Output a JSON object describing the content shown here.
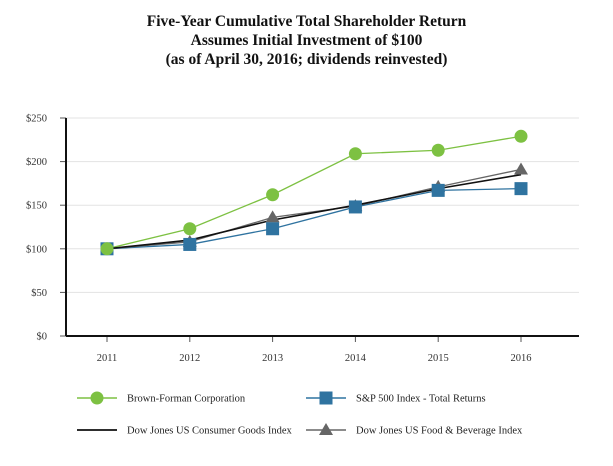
{
  "chart_data": {
    "type": "line",
    "title": "Five-Year Cumulative Total Shareholder Return",
    "subtitle": "Assumes Initial Investment of $100",
    "subtitle2": "(as of April 30, 2016; dividends reinvested)",
    "xlabel": "",
    "ylabel": "",
    "categories": [
      "2011",
      "2012",
      "2013",
      "2014",
      "2015",
      "2016"
    ],
    "ylim": [
      0,
      250
    ],
    "yticks": [
      0,
      50,
      100,
      150,
      200,
      250
    ],
    "ytick_labels": [
      "$0",
      "$50",
      "$100",
      "$150",
      "$200",
      "$250"
    ],
    "grid": true,
    "legend_position": "bottom",
    "series": [
      {
        "name": "Brown-Forman Corporation",
        "color": "#7dc142",
        "marker": "circle",
        "values": [
          100,
          123,
          162,
          209,
          213,
          229
        ]
      },
      {
        "name": "S&P 500 Index - Total Returns",
        "color": "#2f73a0",
        "marker": "square",
        "values": [
          100,
          105,
          123,
          148,
          167,
          169
        ]
      },
      {
        "name": "Dow Jones US Consumer Goods Index",
        "color": "#111111",
        "marker": "none",
        "values": [
          100,
          110,
          133,
          150,
          169,
          185
        ]
      },
      {
        "name": "Dow Jones US Food & Beverage Index",
        "color": "#666666",
        "marker": "triangle",
        "values": [
          100,
          108,
          136,
          149,
          171,
          191
        ]
      }
    ]
  }
}
